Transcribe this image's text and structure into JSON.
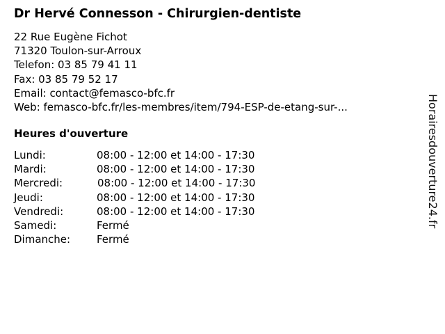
{
  "title": "Dr Hervé Connesson - Chirurgien-dentiste",
  "info": {
    "street": "22 Rue Eugène Fichot",
    "city": "71320 Toulon-sur-Arroux",
    "phone": "Telefon: 03 85 79 41 11",
    "fax": "Fax: 03 85 79 52 17",
    "email": "Email: contact@femasco-bfc.fr",
    "web": "Web: femasco-bfc.fr/les-membres/item/794-ESP-de-etang-sur-..."
  },
  "hours_heading": "Heures d'ouverture",
  "hours": [
    {
      "day": "Lundi:",
      "time": "08:00 - 12:00 et 14:00 - 17:30"
    },
    {
      "day": "Mardi:",
      "time": "08:00 - 12:00 et 14:00 - 17:30"
    },
    {
      "day": "Mercredi:",
      "time": "08:00 - 12:00 et 14:00 - 17:30"
    },
    {
      "day": "Jeudi:",
      "time": "08:00 - 12:00 et 14:00 - 17:30"
    },
    {
      "day": "Vendredi:",
      "time": "08:00 - 12:00 et 14:00 - 17:30"
    },
    {
      "day": "Samedi:",
      "time": "Fermé"
    },
    {
      "day": "Dimanche:",
      "time": "Fermé"
    }
  ],
  "watermark": "Horairesdouverture24.fr"
}
